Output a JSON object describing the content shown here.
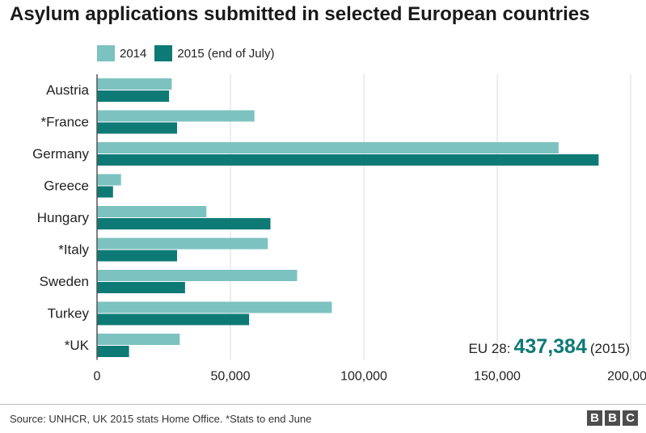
{
  "title": "Asylum applications submitted in selected European countries",
  "legend": [
    {
      "label": "2014",
      "color": "#7cc2c0"
    },
    {
      "label": "2015 (end of July)",
      "color": "#0e7a75"
    }
  ],
  "eu_total": {
    "prefix": "EU 28:",
    "value": "437,384",
    "suffix": "(2015)"
  },
  "source": "Source: UNHCR, UK 2015 stats Home Office. *Stats to end June",
  "logo": [
    "B",
    "B",
    "C"
  ],
  "chart_data": {
    "type": "bar",
    "orientation": "horizontal",
    "categories": [
      "Austria",
      "*France",
      "Germany",
      "Greece",
      "Hungary",
      "*Italy",
      "Sweden",
      "Turkey",
      "*UK"
    ],
    "series": [
      {
        "name": "2014",
        "color": "#7cc2c0",
        "values": [
          28000,
          59000,
          173000,
          9000,
          41000,
          64000,
          75000,
          88000,
          31000
        ]
      },
      {
        "name": "2015 (end of July)",
        "color": "#0e7a75",
        "values": [
          27000,
          30000,
          188000,
          6000,
          65000,
          30000,
          33000,
          57000,
          12000
        ]
      }
    ],
    "xlim": [
      0,
      200000
    ],
    "xticks": [
      0,
      50000,
      100000,
      150000,
      200000
    ],
    "xtick_labels": [
      "0",
      "50,000",
      "100,000",
      "150,000",
      "200,000"
    ],
    "grid": "vertical",
    "legend_position": "top-left"
  }
}
